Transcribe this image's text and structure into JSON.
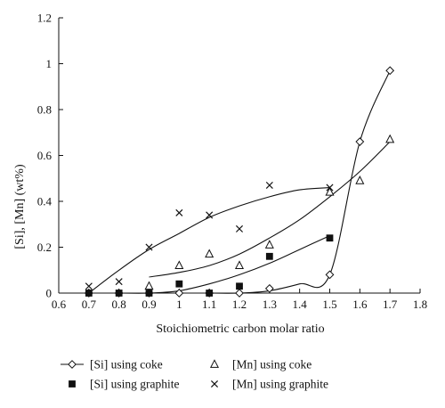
{
  "chart_data": {
    "type": "scatter",
    "title": "",
    "xlabel": "Stoichiometric carbon molar ratio",
    "ylabel": "[Si], [Mn] (wt%)",
    "xlim": [
      0.6,
      1.8
    ],
    "ylim": [
      0,
      1.2
    ],
    "x_ticks": [
      "0.6",
      "0.7",
      "0.8",
      "0.9",
      "1",
      "1.1",
      "1.2",
      "1.3",
      "1.4",
      "1.5",
      "1.6",
      "1.7",
      "1.8"
    ],
    "y_ticks": [
      "0",
      "0.2",
      "0.4",
      "0.6",
      "0.8",
      "1",
      "1.2"
    ],
    "grid": false,
    "legend_position": "bottom",
    "series": [
      {
        "name": "[Si] using coke",
        "marker": "diamond",
        "filled": false,
        "x": [
          0.7,
          0.8,
          0.9,
          1.0,
          1.1,
          1.2,
          1.3,
          1.5,
          1.6,
          1.7
        ],
        "y": [
          0.0,
          0.0,
          0.0,
          0.0,
          0.0,
          0.0,
          0.02,
          0.08,
          0.66,
          0.97
        ]
      },
      {
        "name": "[Mn] using coke",
        "marker": "triangle",
        "filled": false,
        "x": [
          0.9,
          1.0,
          1.1,
          1.2,
          1.3,
          1.5,
          1.6,
          1.7
        ],
        "y": [
          0.03,
          0.12,
          0.17,
          0.12,
          0.21,
          0.44,
          0.49,
          0.67
        ]
      },
      {
        "name": "[Si] using graphite",
        "marker": "square",
        "filled": true,
        "x": [
          0.7,
          0.8,
          0.9,
          1.0,
          1.1,
          1.2,
          1.3,
          1.5
        ],
        "y": [
          0.0,
          0.0,
          0.0,
          0.04,
          0.0,
          0.03,
          0.16,
          0.24
        ]
      },
      {
        "name": "[Mn] using graphite",
        "marker": "cross",
        "filled": false,
        "x": [
          0.7,
          0.8,
          0.9,
          1.0,
          1.1,
          1.2,
          1.3,
          1.5
        ],
        "y": [
          0.03,
          0.05,
          0.2,
          0.35,
          0.34,
          0.28,
          0.47,
          0.46
        ]
      }
    ],
    "trend_lines": [
      {
        "series": "[Si] using coke",
        "x": [
          0.7,
          0.8,
          0.9,
          1.0,
          1.1,
          1.2,
          1.3,
          1.4,
          1.5,
          1.6,
          1.7
        ],
        "y": [
          0.0,
          0.0,
          0.0,
          0.0,
          0.0,
          0.0,
          0.01,
          0.04,
          0.08,
          0.66,
          0.97
        ]
      },
      {
        "series": "[Mn] using coke",
        "x": [
          0.9,
          1.0,
          1.1,
          1.2,
          1.3,
          1.4,
          1.5,
          1.6,
          1.7
        ],
        "y": [
          0.07,
          0.09,
          0.12,
          0.17,
          0.24,
          0.32,
          0.42,
          0.53,
          0.66
        ]
      },
      {
        "series": "[Si] using graphite",
        "x": [
          0.7,
          0.8,
          0.9,
          1.0,
          1.1,
          1.2,
          1.3,
          1.4,
          1.5
        ],
        "y": [
          0.0,
          0.0,
          0.0,
          0.01,
          0.04,
          0.08,
          0.13,
          0.19,
          0.25
        ]
      },
      {
        "series": "[Mn] using graphite",
        "x": [
          0.7,
          0.8,
          0.9,
          1.0,
          1.1,
          1.2,
          1.3,
          1.4,
          1.5
        ],
        "y": [
          0.0,
          0.1,
          0.19,
          0.26,
          0.33,
          0.38,
          0.42,
          0.45,
          0.46
        ]
      }
    ],
    "colors": {
      "ink": "#111111",
      "background": "#ffffff"
    }
  }
}
